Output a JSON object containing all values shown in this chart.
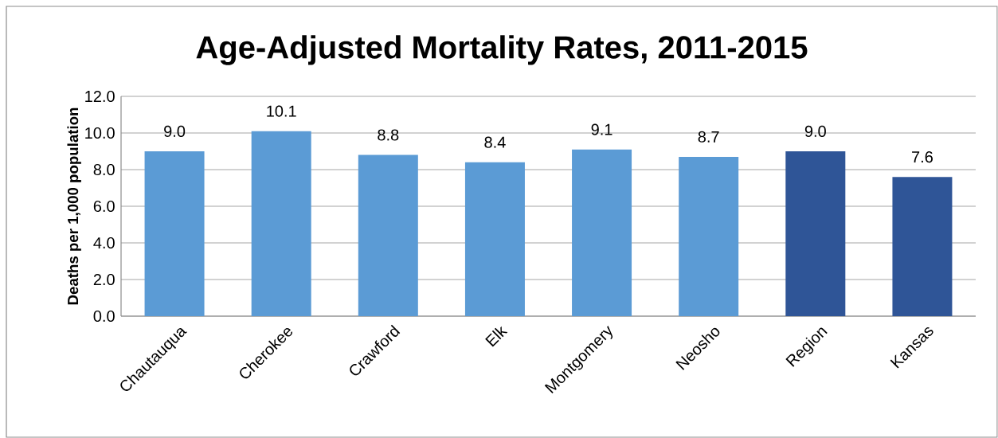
{
  "chart_data": {
    "type": "bar",
    "title": "Age-Adjusted Mortality Rates, 2011-2015",
    "ylabel": "Deaths per 1,000 population",
    "categories": [
      "Chautauqua",
      "Cherokee",
      "Crawford",
      "Elk",
      "Montgomery",
      "Neosho",
      "Region",
      "Kansas"
    ],
    "values": [
      9.0,
      10.1,
      8.8,
      8.4,
      9.1,
      8.7,
      9.0,
      7.6
    ],
    "colors": [
      "#5b9bd5",
      "#5b9bd5",
      "#5b9bd5",
      "#5b9bd5",
      "#5b9bd5",
      "#5b9bd5",
      "#2f5597",
      "#2f5597"
    ],
    "value_labels": [
      "9.0",
      "10.1",
      "8.8",
      "8.4",
      "9.1",
      "8.7",
      "9.0",
      "7.6"
    ],
    "ylim": [
      0,
      12
    ],
    "yticks": [
      {
        "value": 0,
        "label": "0.0"
      },
      {
        "value": 2,
        "label": "2.0"
      },
      {
        "value": 4,
        "label": "4.0"
      },
      {
        "value": 6,
        "label": "6.0"
      },
      {
        "value": 8,
        "label": "8.0"
      },
      {
        "value": 10,
        "label": "10.0"
      },
      {
        "value": 12,
        "label": "12.0"
      }
    ],
    "grid": "y"
  }
}
